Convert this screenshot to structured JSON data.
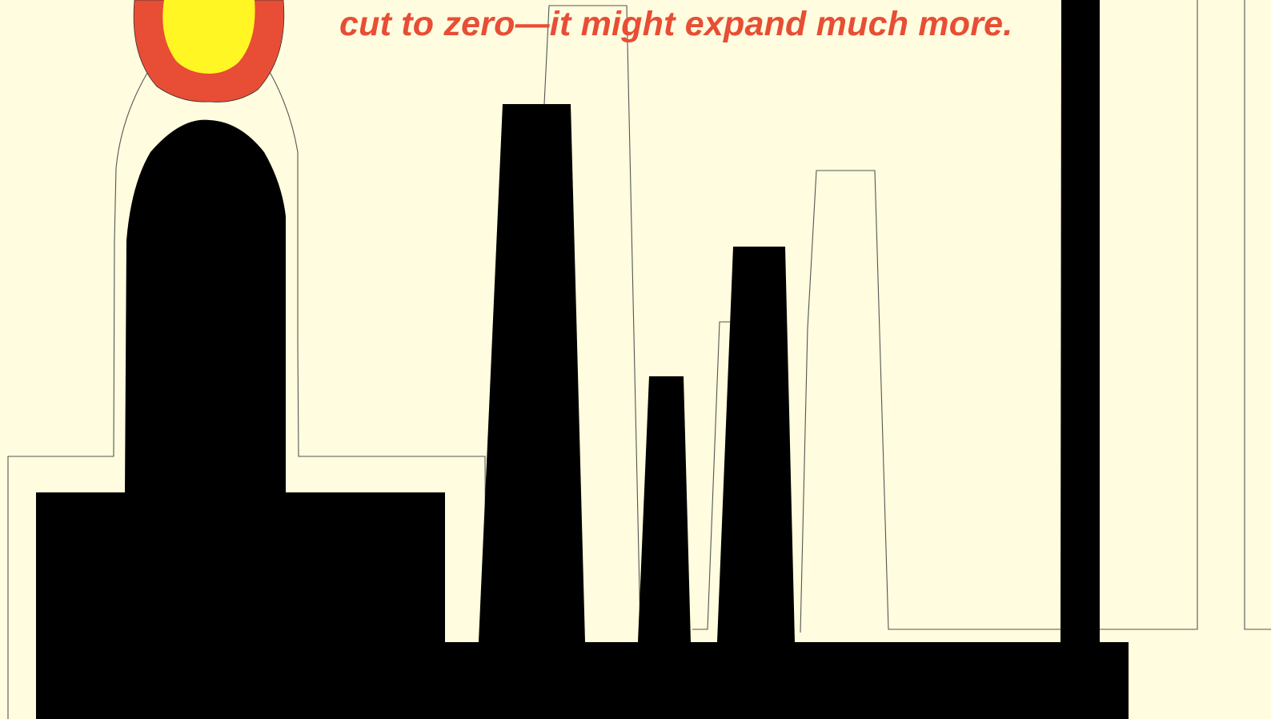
{
  "headline": {
    "text": "cut to zero—it might expand much more."
  },
  "colors": {
    "background": "#fffcdf",
    "text_accent": "#e84d35",
    "flame_outer": "#e84d35",
    "flame_inner": "#fff623",
    "silhouette": "#000000",
    "outline": "#555555"
  }
}
